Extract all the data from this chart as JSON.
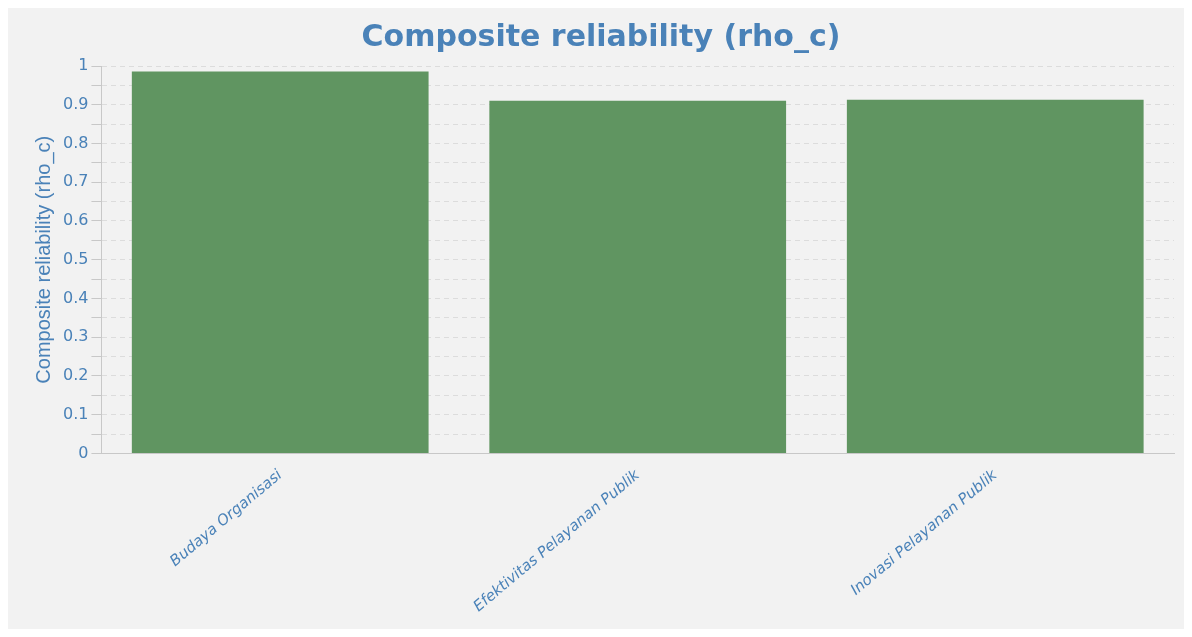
{
  "chart_data": {
    "type": "bar",
    "title": "Composite reliability (rho_c)",
    "ylabel": "Composite reliability (rho_c)",
    "categories": [
      "Budaya Organisasi",
      "Efektivitas Pelayanan Publik",
      "Inovasi Pelayanan Publik"
    ],
    "values": [
      0.986,
      0.91,
      0.913
    ],
    "color": "#609561",
    "ylim": [
      0,
      1
    ],
    "yticks": [
      0,
      {
        "value": 0.05,
        "label": null
      },
      0.1,
      {
        "value": 0.15,
        "label": null
      },
      0.2,
      {
        "value": 0.25,
        "label": null
      },
      0.3,
      {
        "value": 0.35,
        "label": null
      },
      0.4,
      {
        "value": 0.45,
        "label": null
      },
      0.5,
      {
        "value": 0.55,
        "label": null
      },
      0.6,
      {
        "value": 0.65,
        "label": null
      },
      0.7,
      {
        "value": 0.75,
        "label": null
      },
      0.8,
      {
        "value": 0.85,
        "label": null
      },
      0.9,
      {
        "value": 0.95,
        "label": null
      },
      1
    ],
    "grid": "y",
    "legend": false
  }
}
